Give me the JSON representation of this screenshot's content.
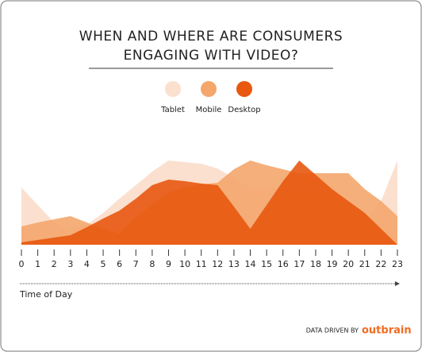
{
  "chart_data": {
    "type": "area",
    "title": [
      "WHEN AND WHERE ARE CONSUMERS",
      "ENGAGING WITH VIDEO?"
    ],
    "x_label": "Time of Day",
    "x": [
      0,
      1,
      2,
      3,
      4,
      5,
      6,
      7,
      8,
      9,
      10,
      11,
      12,
      13,
      14,
      15,
      16,
      17,
      18,
      19,
      20,
      21,
      22,
      23
    ],
    "xlim": [
      0,
      23
    ],
    "ylim": [
      0,
      110
    ],
    "series": [
      {
        "name": "Tablet",
        "color": "#fbe0cf",
        "values": [
          72,
          50,
          28,
          18,
          25,
          40,
          58,
          75,
          92,
          106,
          104,
          102,
          96,
          84,
          72,
          71,
          70,
          68,
          64,
          58,
          53,
          30,
          55,
          106
        ]
      },
      {
        "name": "Mobile",
        "color": "#f4a66b",
        "values": [
          23,
          28,
          32,
          36,
          28,
          20,
          14,
          35,
          50,
          66,
          72,
          76,
          78,
          95,
          106,
          100,
          95,
          90,
          90,
          90,
          90,
          70,
          55,
          36
        ]
      },
      {
        "name": "Desktop",
        "color": "#e8580f",
        "values": [
          3,
          6,
          9,
          12,
          22,
          33,
          43,
          58,
          75,
          82,
          80,
          77,
          75,
          48,
          20,
          50,
          80,
          106,
          88,
          70,
          55,
          40,
          20,
          0
        ]
      }
    ],
    "footer": "DATA DRIVEN BY",
    "brand": "outbrain"
  }
}
